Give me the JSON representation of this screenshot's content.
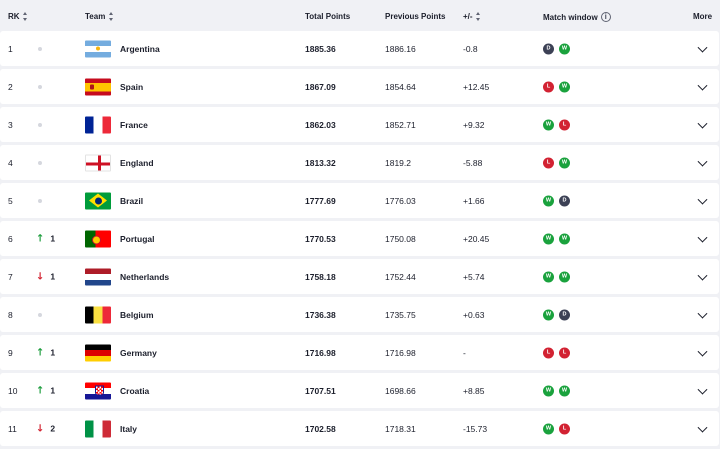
{
  "header": {
    "rank": "RK",
    "team": "Team",
    "total_points": "Total Points",
    "previous_points": "Previous Points",
    "plus_minus": "+/-",
    "match_window": "Match window",
    "more": "More"
  },
  "colors": {
    "win": "#1aa23d",
    "loss": "#d22232",
    "draw": "#3c4155",
    "up": "#1f9e3f",
    "down": "#d32432"
  },
  "rows": [
    {
      "rank": "1",
      "move": "",
      "team": "Argentina",
      "flag": "argentina-flag",
      "total": "1885.36",
      "previous": "1886.16",
      "diff": "-0.8",
      "results": [
        "D",
        "W"
      ]
    },
    {
      "rank": "2",
      "move": "",
      "team": "Spain",
      "flag": "spain-flag",
      "total": "1867.09",
      "previous": "1854.64",
      "diff": "+12.45",
      "results": [
        "L",
        "W"
      ]
    },
    {
      "rank": "3",
      "move": "",
      "team": "France",
      "flag": "france-flag",
      "total": "1862.03",
      "previous": "1852.71",
      "diff": "+9.32",
      "results": [
        "W",
        "L"
      ]
    },
    {
      "rank": "4",
      "move": "",
      "team": "England",
      "flag": "england-flag",
      "total": "1813.32",
      "previous": "1819.2",
      "diff": "-5.88",
      "results": [
        "L",
        "W"
      ]
    },
    {
      "rank": "5",
      "move": "",
      "team": "Brazil",
      "flag": "brazil-flag",
      "total": "1777.69",
      "previous": "1776.03",
      "diff": "+1.66",
      "results": [
        "W",
        "D"
      ]
    },
    {
      "rank": "6",
      "move": "1",
      "dir": "up",
      "team": "Portugal",
      "flag": "portugal-flag",
      "total": "1770.53",
      "previous": "1750.08",
      "diff": "+20.45",
      "results": [
        "W",
        "W"
      ]
    },
    {
      "rank": "7",
      "move": "1",
      "dir": "down",
      "team": "Netherlands",
      "flag": "netherlands-flag",
      "total": "1758.18",
      "previous": "1752.44",
      "diff": "+5.74",
      "results": [
        "W",
        "W"
      ]
    },
    {
      "rank": "8",
      "move": "",
      "team": "Belgium",
      "flag": "belgium-flag",
      "total": "1736.38",
      "previous": "1735.75",
      "diff": "+0.63",
      "results": [
        "W",
        "D"
      ]
    },
    {
      "rank": "9",
      "move": "1",
      "dir": "up",
      "team": "Germany",
      "flag": "germany-flag",
      "total": "1716.98",
      "previous": "1716.98",
      "diff": "-",
      "results": [
        "L",
        "L"
      ]
    },
    {
      "rank": "10",
      "move": "1",
      "dir": "up",
      "team": "Croatia",
      "flag": "croatia-flag",
      "total": "1707.51",
      "previous": "1698.66",
      "diff": "+8.85",
      "results": [
        "W",
        "W"
      ]
    },
    {
      "rank": "11",
      "move": "2",
      "dir": "down",
      "team": "Italy",
      "flag": "italy-flag",
      "total": "1702.58",
      "previous": "1718.31",
      "diff": "-15.73",
      "results": [
        "W",
        "L"
      ]
    }
  ]
}
